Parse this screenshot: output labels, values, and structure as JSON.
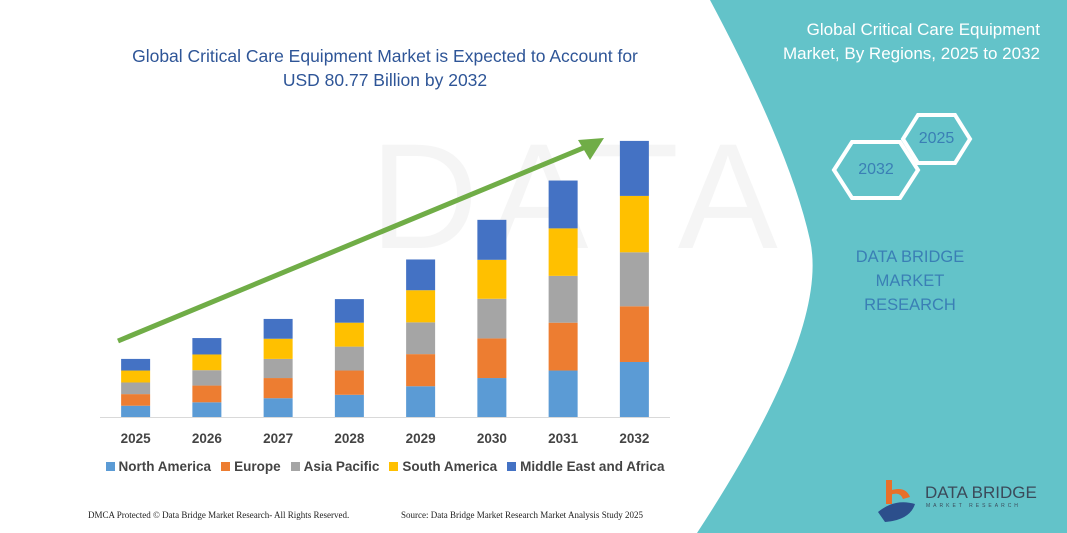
{
  "chart_data": {
    "type": "bar",
    "stacked": true,
    "title": "Global Critical Care Equipment Market is Expected to Account for USD 80.77 Billion by 2032",
    "categories": [
      "2025",
      "2026",
      "2027",
      "2028",
      "2029",
      "2030",
      "2031",
      "2032"
    ],
    "series": [
      {
        "name": "North America",
        "color": "#5b9bd5",
        "values": [
          3.3,
          4.3,
          5.5,
          6.5,
          9.0,
          11.4,
          13.6,
          16.1
        ]
      },
      {
        "name": "Europe",
        "color": "#ed7d31",
        "values": [
          3.4,
          4.9,
          5.9,
          7.1,
          9.4,
          11.6,
          14.0,
          16.3
        ]
      },
      {
        "name": "Asia Pacific",
        "color": "#a5a5a5",
        "values": [
          3.4,
          4.5,
          5.6,
          7.0,
          9.3,
          11.6,
          13.7,
          15.8
        ]
      },
      {
        "name": "South America",
        "color": "#ffc000",
        "values": [
          3.5,
          4.6,
          5.9,
          7.0,
          9.4,
          11.4,
          13.9,
          16.5
        ]
      },
      {
        "name": "Middle East and Africa",
        "color": "#4472c4",
        "values": [
          3.4,
          4.8,
          5.8,
          6.9,
          9.0,
          11.7,
          14.0,
          16.1
        ]
      }
    ],
    "xlabel": "",
    "ylabel": "",
    "ylim": [
      0,
      82
    ],
    "grid": false,
    "legend": "bottom",
    "trend_arrow_color": "#70ad47"
  },
  "title_line1": "Global Critical Care Equipment Market is Expected to Account for",
  "title_line2": "USD 80.77 Billion by 2032",
  "panel": {
    "title_line1": "Global Critical Care Equipment",
    "title_line2": "Market, By Regions, 2025 to 2032",
    "hex_2025": "2025",
    "hex_2032": "2032",
    "brand_line1": "DATA BRIDGE MARKET",
    "brand_line2": "RESEARCH",
    "color": "#63c3c9"
  },
  "logo": {
    "name": "DATA BRIDGE",
    "sub": "MARKET RESEARCH"
  },
  "footer": {
    "left": "DMCA Protected © Data Bridge Market Research- All Rights Reserved.",
    "right": "Source: Data Bridge Market Research Market Analysis Study 2025"
  }
}
